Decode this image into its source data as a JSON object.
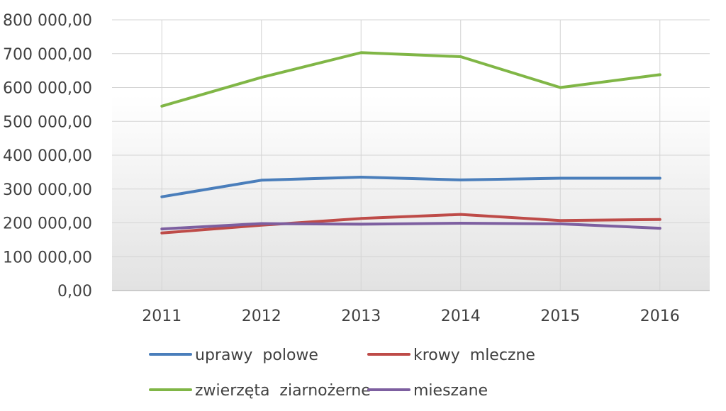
{
  "chart_data": {
    "type": "line",
    "title": "",
    "xlabel": "",
    "ylabel": "",
    "categories": [
      "2011",
      "2012",
      "2013",
      "2014",
      "2015",
      "2016"
    ],
    "ylim": [
      0,
      800000
    ],
    "y_ticks": [
      0,
      100000,
      200000,
      300000,
      400000,
      500000,
      600000,
      700000,
      800000
    ],
    "y_tick_labels": [
      "0,00",
      "100 000,00",
      "200 000,00",
      "300 000,00",
      "400 000,00",
      "500 000,00",
      "600 000,00",
      "700 000,00",
      "800 000,00"
    ],
    "grid": true,
    "legend_placement": "bottom",
    "background": "gradient-gray",
    "series": [
      {
        "name": "uprawy  polowe",
        "color": "#4a7ebb",
        "values": [
          277000,
          326000,
          335000,
          327000,
          332000,
          332000
        ]
      },
      {
        "name": "krowy  mleczne",
        "color": "#be4b48",
        "values": [
          170000,
          193000,
          213000,
          225000,
          207000,
          210000
        ]
      },
      {
        "name": "zwierzęta  ziarnożerne",
        "color": "#80b646",
        "values": [
          545000,
          630000,
          703000,
          691000,
          600000,
          638000
        ]
      },
      {
        "name": "mieszane",
        "color": "#7d5fa0",
        "values": [
          182000,
          198000,
          196000,
          199000,
          197000,
          184000
        ]
      }
    ]
  }
}
